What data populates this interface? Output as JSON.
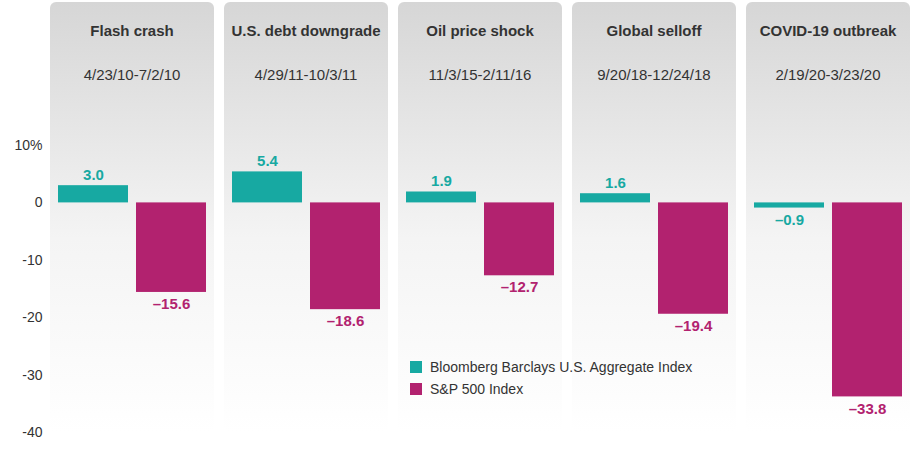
{
  "chart_data": {
    "type": "bar",
    "categories": [
      "Flash crash",
      "U.S. debt downgrade",
      "Oil price shock",
      "Global selloff",
      "COVID-19 outbreak"
    ],
    "periods": [
      "4/23/10-7/2/10",
      "4/29/11-10/3/11",
      "11/3/15-2/11/16",
      "9/20/18-12/24/18",
      "2/19/20-3/23/20"
    ],
    "series": [
      {
        "name": "Bloomberg Barclays U.S. Aggregate Index",
        "color": "#17a9a2",
        "values": [
          3.0,
          5.4,
          1.9,
          1.6,
          -0.9
        ],
        "value_labels": [
          "3.0",
          "5.4",
          "1.9",
          "1.6",
          "–0.9"
        ]
      },
      {
        "name": "S&P 500 Index",
        "color": "#b2226f",
        "values": [
          -15.6,
          -18.6,
          -12.7,
          -19.4,
          -33.8
        ],
        "value_labels": [
          "–15.6",
          "–18.6",
          "–12.7",
          "–19.4",
          "–33.8"
        ]
      }
    ],
    "ylim": [
      -40,
      10
    ],
    "yticks": [
      {
        "value": 10,
        "label": "10%"
      },
      0,
      -10,
      -20,
      -30,
      -40
    ],
    "grid": false,
    "legend": "bottom",
    "data_labels": true
  }
}
